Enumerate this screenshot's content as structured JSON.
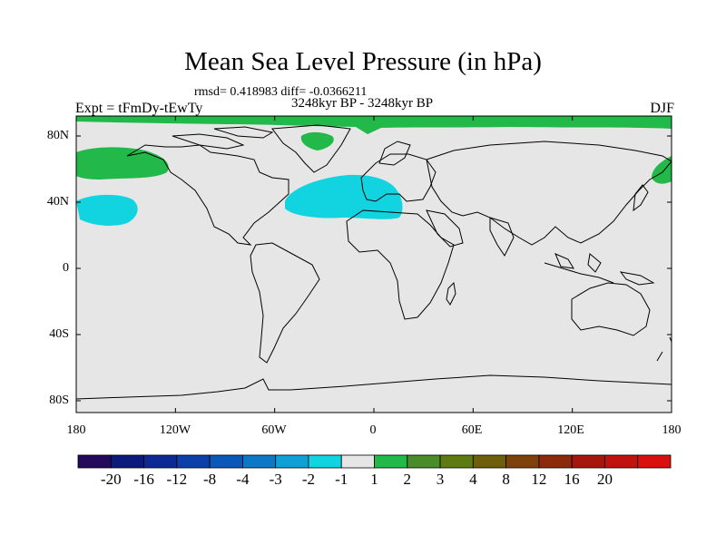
{
  "title": "Mean Sea Level Pressure (in hPa)",
  "stats": "rmsd= 0.418983 diff= -0.0366211",
  "period": "3248kyr BP - 3248kyr BP",
  "experiment": "Expt = tFmDy-tEwTy",
  "season": "DJF",
  "lat_labels": [
    "80N",
    "40N",
    "0",
    "40S",
    "80S"
  ],
  "lon_labels": [
    "180",
    "120W",
    "60W",
    "0",
    "60E",
    "120E",
    "180"
  ],
  "colorbar": {
    "colors": [
      "#250a5c",
      "#0c1b7b",
      "#0d2a94",
      "#0a40a8",
      "#0a58b8",
      "#0d78c5",
      "#0fa0d5",
      "#12d4e0",
      "#e6e6e6",
      "#22b84a",
      "#4a8c2a",
      "#5e7a12",
      "#705f0a",
      "#80420c",
      "#8c2a0c",
      "#a6160c",
      "#c0120e",
      "#d8100e"
    ],
    "labels": [
      "-20",
      "-16",
      "-12",
      "-8",
      "-4",
      "-3",
      "-2",
      "-1",
      "1",
      "2",
      "3",
      "4",
      "8",
      "12",
      "16",
      "20"
    ]
  },
  "map_colors": {
    "background": "#e6e6e6",
    "positive": "#22b84a",
    "negative": "#12d4e0",
    "coast": "#000000"
  }
}
